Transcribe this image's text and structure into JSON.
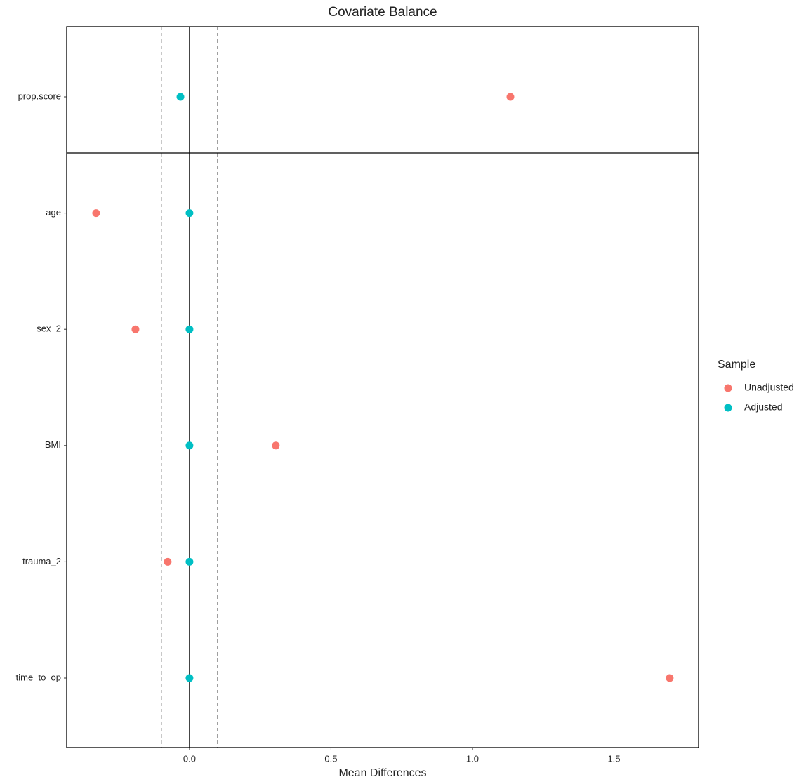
{
  "chart_data": {
    "type": "scatter",
    "title": "Covariate Balance",
    "xlabel": "Mean Differences",
    "categories": [
      "prop.score",
      "age",
      "sex_2",
      "BMI",
      "trauma_2",
      "time_to_op"
    ],
    "series": [
      {
        "name": "Unadjusted",
        "color": "#F8766D",
        "values": [
          1.134,
          -0.33,
          -0.191,
          0.305,
          -0.077,
          1.697
        ]
      },
      {
        "name": "Adjusted",
        "color": "#00BFC4",
        "values": [
          -0.032,
          0,
          0,
          0,
          0,
          0
        ]
      }
    ],
    "xlim": [
      -0.434,
      1.799
    ],
    "xticks": [
      {
        "value": 0,
        "label": "0.0"
      },
      0.5,
      {
        "value": 1,
        "label": "1.0"
      },
      1.5
    ],
    "thresholds": [
      -0.1,
      0.1
    ],
    "legend_title": "Sample",
    "legend": "right"
  }
}
